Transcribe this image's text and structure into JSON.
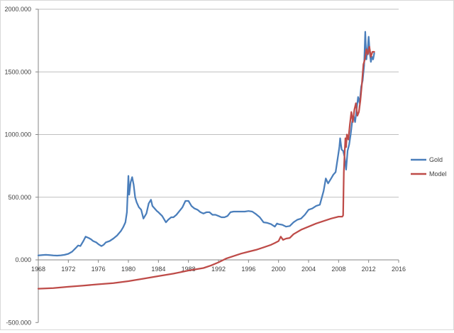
{
  "chart_data": {
    "type": "line",
    "title": "",
    "xlabel": "",
    "ylabel": "",
    "xlim": [
      1968,
      2016
    ],
    "ylim": [
      -500,
      2000
    ],
    "x_ticks": [
      1968,
      1972,
      1976,
      1980,
      1984,
      1988,
      1992,
      1996,
      2000,
      2004,
      2008,
      2012,
      2016
    ],
    "x_tick_labels": [
      "1968",
      "1972",
      "1976",
      "1980",
      "1984",
      "1988",
      "1992",
      "1996",
      "2000",
      "2004",
      "2008",
      "2012",
      "2016"
    ],
    "y_ticks": [
      -500,
      0,
      500,
      1000,
      1500,
      2000
    ],
    "y_tick_labels": [
      "-500.000",
      "0.000",
      "500.000",
      "1000.000",
      "1500.000",
      "2000.000"
    ],
    "grid": "horizontal major gridlines",
    "legend_position": "right",
    "series": [
      {
        "name": "Gold",
        "color": "#4a7ebb",
        "x": [
          1968.0,
          1968.5,
          1969.0,
          1969.5,
          1970.0,
          1970.5,
          1971.0,
          1971.5,
          1972.0,
          1972.5,
          1973.0,
          1973.3,
          1973.6,
          1974.0,
          1974.3,
          1974.7,
          1975.0,
          1975.3,
          1975.7,
          1976.0,
          1976.4,
          1976.7,
          1977.0,
          1977.5,
          1978.0,
          1978.5,
          1979.0,
          1979.3,
          1979.6,
          1979.8,
          1980.0,
          1980.1,
          1980.3,
          1980.5,
          1980.7,
          1980.9,
          1981.1,
          1981.4,
          1981.7,
          1982.0,
          1982.4,
          1982.7,
          1983.0,
          1983.2,
          1983.5,
          1983.8,
          1984.0,
          1984.5,
          1985.0,
          1985.3,
          1985.7,
          1986.0,
          1986.4,
          1986.8,
          1987.2,
          1987.6,
          1988.0,
          1988.4,
          1988.8,
          1989.2,
          1989.6,
          1990.0,
          1990.4,
          1990.8,
          1991.2,
          1991.6,
          1992.0,
          1992.4,
          1992.8,
          1993.2,
          1993.6,
          1994.0,
          1994.5,
          1995.0,
          1995.5,
          1996.0,
          1996.5,
          1997.0,
          1997.5,
          1998.0,
          1998.5,
          1999.0,
          1999.5,
          1999.8,
          2000.0,
          2000.5,
          2001.0,
          2001.5,
          2002.0,
          2002.5,
          2003.0,
          2003.5,
          2004.0,
          2004.5,
          2005.0,
          2005.5,
          2006.0,
          2006.3,
          2006.6,
          2007.0,
          2007.3,
          2007.6,
          2007.9,
          2008.1,
          2008.2,
          2008.4,
          2008.6,
          2008.8,
          2009.0,
          2009.2,
          2009.4,
          2009.6,
          2009.8,
          2010.0,
          2010.2,
          2010.4,
          2010.6,
          2010.8,
          2011.0,
          2011.2,
          2011.4,
          2011.55,
          2011.7,
          2011.8,
          2011.9,
          2012.0,
          2012.15,
          2012.3,
          2012.45,
          2012.6,
          2012.75
        ],
        "values": [
          35,
          38,
          40,
          38,
          35,
          34,
          36,
          40,
          48,
          65,
          95,
          115,
          110,
          150,
          185,
          175,
          165,
          150,
          140,
          125,
          110,
          120,
          140,
          150,
          170,
          195,
          230,
          260,
          300,
          380,
          670,
          520,
          620,
          660,
          600,
          500,
          460,
          420,
          400,
          330,
          370,
          450,
          480,
          430,
          410,
          390,
          380,
          350,
          300,
          320,
          340,
          340,
          360,
          390,
          420,
          470,
          470,
          430,
          410,
          400,
          380,
          370,
          380,
          380,
          360,
          360,
          350,
          340,
          340,
          350,
          380,
          385,
          385,
          385,
          385,
          390,
          385,
          365,
          340,
          300,
          295,
          285,
          265,
          290,
          285,
          280,
          265,
          270,
          300,
          320,
          330,
          360,
          400,
          410,
          430,
          440,
          550,
          650,
          610,
          650,
          680,
          700,
          820,
          900,
          970,
          880,
          870,
          820,
          720,
          870,
          920,
          1000,
          1100,
          1150,
          1100,
          1200,
          1300,
          1250,
          1380,
          1430,
          1550,
          1820,
          1600,
          1660,
          1700,
          1780,
          1650,
          1580,
          1620,
          1600,
          1650
        ]
      },
      {
        "name": "Model",
        "color": "#be4b48",
        "x": [
          1968.0,
          1970.0,
          1972.0,
          1974.0,
          1976.0,
          1978.0,
          1980.0,
          1982.0,
          1984.0,
          1986.0,
          1988.0,
          1990.0,
          1991.0,
          1992.0,
          1993.0,
          1994.0,
          1995.0,
          1996.0,
          1997.0,
          1998.0,
          1999.0,
          1999.5,
          2000.0,
          2000.3,
          2000.6,
          2001.0,
          2001.5,
          2002.0,
          2003.0,
          2004.0,
          2005.0,
          2006.0,
          2007.0,
          2008.0,
          2008.5,
          2008.6,
          2008.7,
          2008.8,
          2008.9,
          2009.0,
          2009.1,
          2009.3,
          2009.5,
          2009.7,
          2009.9,
          2010.1,
          2010.3,
          2010.5,
          2010.7,
          2010.9,
          2011.1,
          2011.3,
          2011.5,
          2011.7,
          2011.9,
          2012.1,
          2012.3,
          2012.5,
          2012.75
        ],
        "values": [
          -230,
          -225,
          -215,
          -205,
          -195,
          -185,
          -170,
          -150,
          -130,
          -110,
          -85,
          -65,
          -45,
          -20,
          10,
          30,
          50,
          65,
          80,
          100,
          120,
          135,
          150,
          185,
          160,
          170,
          175,
          205,
          240,
          265,
          290,
          310,
          330,
          345,
          345,
          355,
          700,
          850,
          970,
          900,
          1000,
          960,
          1080,
          1180,
          1100,
          1200,
          1250,
          1150,
          1180,
          1270,
          1400,
          1560,
          1600,
          1680,
          1640,
          1700,
          1620,
          1660,
          1660
        ]
      }
    ]
  }
}
